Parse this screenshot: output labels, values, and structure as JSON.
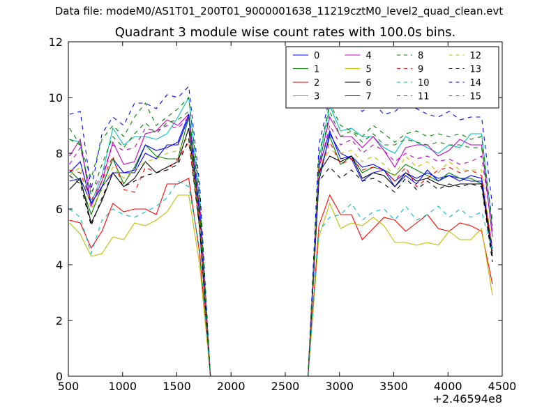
{
  "suptitle": "Data file: modeM0/AS1T01_200T01_9000001638_11219cztM0_level2_quad_clean.evt",
  "chart_data": {
    "type": "line",
    "title": "Quadrant 3 module wise count rates with 100.0s bins.",
    "xlabel": "",
    "ylabel": "",
    "x_offset_label": "+2.46594e8",
    "xlim": [
      500,
      4500
    ],
    "ylim": [
      0,
      12
    ],
    "xticks": [
      500,
      1000,
      1500,
      2000,
      2500,
      3000,
      3500,
      4000,
      4500
    ],
    "yticks": [
      0,
      2,
      4,
      6,
      8,
      10,
      12
    ],
    "grid": false,
    "legend": {
      "placement": "top-right",
      "columns": 4
    },
    "x": [
      510,
      610,
      710,
      810,
      910,
      1010,
      1110,
      1210,
      1310,
      1410,
      1510,
      1610,
      1710,
      1810,
      1910,
      2010,
      2110,
      2210,
      2310,
      2410,
      2510,
      2610,
      2710,
      2810,
      2910,
      3010,
      3110,
      3210,
      3310,
      3410,
      3510,
      3610,
      3710,
      3810,
      3910,
      4010,
      4110,
      4210,
      4310,
      4410
    ],
    "series": [
      {
        "name": "0",
        "color": "#0000ff",
        "dash": "solid",
        "values": [
          7.0,
          7.1,
          6.2,
          6.8,
          7.8,
          7.3,
          7.3,
          8.0,
          7.8,
          8.3,
          8.3,
          9.3,
          5.6,
          0,
          0,
          0,
          0,
          0,
          0,
          0,
          0,
          0,
          0,
          7.5,
          8.8,
          7.8,
          7.9,
          7.5,
          7.6,
          7.4,
          7.0,
          7.3,
          7.1,
          7.3,
          7.1,
          7.2,
          7.1,
          7.0,
          7.0,
          4.6
        ]
      },
      {
        "name": "1",
        "color": "#008000",
        "dash": "solid",
        "values": [
          7.4,
          7.0,
          5.8,
          6.8,
          7.8,
          6.9,
          7.5,
          8.3,
          7.9,
          7.8,
          7.8,
          9.3,
          5.5,
          0,
          0,
          0,
          0,
          0,
          0,
          0,
          0,
          0,
          0,
          7.2,
          8.6,
          7.6,
          7.9,
          7.3,
          7.5,
          7.4,
          7.2,
          7.6,
          7.4,
          7.2,
          7.0,
          7.3,
          7.1,
          7.1,
          6.9,
          4.4
        ]
      },
      {
        "name": "2",
        "color": "#ff0000",
        "dash": "solid",
        "values": [
          5.6,
          5.5,
          4.6,
          5.2,
          6.2,
          5.9,
          6.0,
          6.0,
          5.8,
          6.9,
          6.9,
          7.1,
          4.4,
          0,
          0,
          0,
          0,
          0,
          0,
          0,
          0,
          0,
          0,
          5.4,
          6.5,
          5.8,
          5.8,
          4.9,
          5.3,
          5.7,
          5.6,
          5.2,
          5.5,
          5.8,
          5.3,
          5.2,
          5.5,
          5.4,
          5.2,
          3.3
        ]
      },
      {
        "name": "3",
        "color": "#00bfbf",
        "dash": "solid",
        "values": [
          8.5,
          8.4,
          6.2,
          7.2,
          8.9,
          8.3,
          8.6,
          8.6,
          8.5,
          8.7,
          9.3,
          10.0,
          6.3,
          0,
          0,
          0,
          0,
          0,
          0,
          0,
          0,
          0,
          0,
          7.8,
          9.7,
          8.8,
          8.9,
          8.6,
          8.6,
          8.2,
          8.0,
          8.6,
          8.4,
          8.2,
          8.0,
          8.3,
          8.2,
          8.7,
          8.7,
          5.3
        ]
      },
      {
        "name": "4",
        "color": "#bf00bf",
        "dash": "solid",
        "values": [
          7.9,
          8.5,
          6.1,
          7.0,
          8.4,
          7.6,
          7.7,
          8.7,
          8.8,
          9.2,
          9.0,
          9.4,
          6.0,
          0,
          0,
          0,
          0,
          0,
          0,
          0,
          0,
          0,
          0,
          7.6,
          9.3,
          8.6,
          8.6,
          8.2,
          8.6,
          8.1,
          7.5,
          8.2,
          8.3,
          8.3,
          7.9,
          8.1,
          8.5,
          8.3,
          8.3,
          5.0
        ]
      },
      {
        "name": "5",
        "color": "#bfbf00",
        "dash": "solid",
        "values": [
          5.5,
          5.1,
          4.3,
          4.4,
          5.0,
          4.9,
          5.5,
          5.4,
          5.6,
          5.9,
          6.5,
          6.5,
          4.0,
          0,
          0,
          0,
          0,
          0,
          0,
          0,
          0,
          0,
          0,
          5.0,
          6.2,
          5.3,
          5.5,
          5.4,
          5.7,
          5.4,
          4.8,
          4.8,
          4.7,
          4.8,
          4.7,
          5.2,
          4.9,
          4.9,
          5.3,
          2.9
        ]
      },
      {
        "name": "6",
        "color": "#000000",
        "dash": "solid",
        "values": [
          6.7,
          7.1,
          5.5,
          6.3,
          7.3,
          6.8,
          7.1,
          7.7,
          7.3,
          7.5,
          7.7,
          8.9,
          5.3,
          0,
          0,
          0,
          0,
          0,
          0,
          0,
          0,
          0,
          0,
          7.3,
          7.9,
          7.7,
          7.9,
          7.1,
          7.3,
          7.2,
          6.8,
          7.3,
          7.0,
          7.1,
          6.9,
          6.8,
          6.9,
          6.9,
          6.9,
          4.3
        ]
      },
      {
        "name": "7",
        "color": "#0000ff",
        "dash": "solid",
        "values": [
          7.3,
          7.7,
          6.2,
          6.8,
          7.3,
          7.3,
          7.4,
          8.3,
          8.1,
          8.2,
          8.4,
          9.4,
          5.8,
          0,
          0,
          0,
          0,
          0,
          0,
          0,
          0,
          0,
          0,
          7.0,
          8.7,
          8.0,
          7.8,
          7.0,
          7.3,
          7.4,
          6.8,
          7.2,
          6.9,
          7.4,
          7.0,
          7.2,
          7.0,
          7.2,
          7.1,
          4.5
        ]
      },
      {
        "name": "8",
        "color": "#008000",
        "dash": "dashed",
        "values": [
          8.9,
          8.3,
          7.1,
          8.5,
          9.0,
          8.6,
          9.3,
          9.8,
          9.0,
          9.3,
          9.6,
          10.0,
          6.6,
          0,
          0,
          0,
          0,
          0,
          0,
          0,
          0,
          0,
          0,
          7.9,
          9.8,
          9.0,
          8.8,
          8.6,
          9.0,
          8.7,
          8.4,
          8.7,
          8.8,
          8.6,
          8.7,
          8.6,
          8.7,
          8.5,
          8.6,
          5.4
        ]
      },
      {
        "name": "9",
        "color": "#ff0000",
        "dash": "dashed",
        "values": [
          7.4,
          7.3,
          6.3,
          7.0,
          7.9,
          6.7,
          6.6,
          7.5,
          7.3,
          7.4,
          7.8,
          8.4,
          5.5,
          0,
          0,
          0,
          0,
          0,
          0,
          0,
          0,
          0,
          0,
          7.3,
          8.4,
          7.6,
          7.8,
          7.4,
          7.5,
          7.4,
          7.0,
          7.5,
          6.8,
          7.1,
          7.4,
          7.5,
          7.3,
          7.4,
          7.2,
          4.4
        ]
      },
      {
        "name": "10",
        "color": "#00bfbf",
        "dash": "dashed",
        "values": [
          6.0,
          5.7,
          4.4,
          5.6,
          6.0,
          5.8,
          5.7,
          5.9,
          6.1,
          6.4,
          7.0,
          6.8,
          4.6,
          0,
          0,
          0,
          0,
          0,
          0,
          0,
          0,
          0,
          0,
          5.2,
          5.7,
          5.8,
          6.2,
          5.6,
          5.9,
          6.0,
          5.6,
          6.1,
          5.6,
          5.8,
          6.1,
          5.7,
          6.0,
          5.7,
          5.9,
          4.5
        ]
      },
      {
        "name": "11",
        "color": "#bf00bf",
        "dash": "dashed",
        "values": [
          7.6,
          8.2,
          6.6,
          7.2,
          8.3,
          8.1,
          8.2,
          8.9,
          8.8,
          9.0,
          8.9,
          9.3,
          5.9,
          0,
          0,
          0,
          0,
          0,
          0,
          0,
          0,
          0,
          0,
          7.4,
          9.0,
          8.3,
          8.5,
          8.0,
          8.3,
          8.1,
          7.7,
          8.0,
          7.8,
          7.9,
          7.7,
          7.8,
          7.6,
          7.7,
          7.9,
          5.2
        ]
      },
      {
        "name": "12",
        "color": "#bfbf00",
        "dash": "dashed",
        "values": [
          7.2,
          7.5,
          6.0,
          6.7,
          7.5,
          7.1,
          7.4,
          7.7,
          7.8,
          8.0,
          8.1,
          8.6,
          5.6,
          0,
          0,
          0,
          0,
          0,
          0,
          0,
          0,
          0,
          0,
          7.6,
          8.1,
          8.0,
          8.1,
          7.7,
          7.9,
          7.6,
          7.2,
          7.9,
          7.5,
          7.7,
          7.3,
          7.7,
          7.4,
          7.4,
          7.4,
          4.6
        ]
      },
      {
        "name": "13",
        "color": "#000000",
        "dash": "dashed",
        "values": [
          7.2,
          6.9,
          5.4,
          6.4,
          7.3,
          6.8,
          7.0,
          7.2,
          7.3,
          7.4,
          7.6,
          8.5,
          5.3,
          0,
          0,
          0,
          0,
          0,
          0,
          0,
          0,
          0,
          0,
          7.0,
          7.5,
          7.1,
          7.4,
          7.0,
          7.1,
          6.9,
          6.6,
          7.1,
          6.7,
          7.0,
          6.7,
          6.9,
          6.8,
          6.9,
          6.8,
          4.1
        ]
      },
      {
        "name": "14",
        "color": "#0000ff",
        "dash": "dashed",
        "values": [
          9.4,
          9.5,
          6.7,
          8.7,
          9.3,
          9.0,
          9.8,
          9.8,
          9.6,
          10.1,
          10.0,
          10.4,
          6.9,
          0,
          0,
          0,
          0,
          0,
          0,
          0,
          0,
          0,
          0,
          8.3,
          10.0,
          9.8,
          9.9,
          9.5,
          9.8,
          9.4,
          9.5,
          9.8,
          9.6,
          9.4,
          9.3,
          9.5,
          9.2,
          9.3,
          9.3,
          6.1
        ]
      },
      {
        "name": "15",
        "color": "#008000",
        "dash": "dashed",
        "values": [
          8.5,
          8.3,
          6.5,
          7.6,
          8.6,
          8.2,
          8.7,
          9.1,
          8.7,
          9.1,
          9.2,
          9.5,
          6.3,
          0,
          0,
          0,
          0,
          0,
          0,
          0,
          0,
          0,
          0,
          7.5,
          9.5,
          8.6,
          8.8,
          8.4,
          8.7,
          8.3,
          8.3,
          8.5,
          8.4,
          8.3,
          8.4,
          8.3,
          8.3,
          8.2,
          8.2,
          5.6
        ]
      }
    ]
  }
}
